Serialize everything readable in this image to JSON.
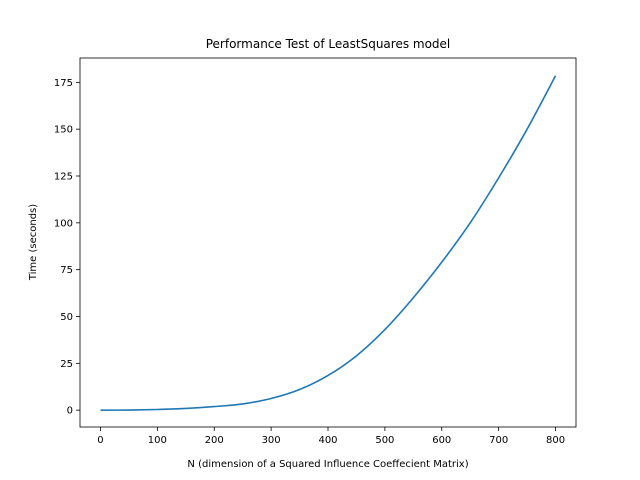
{
  "chart_data": {
    "type": "line",
    "title": "Performance Test of LeastSquares model",
    "xlabel": "N (dimension of a Squared Influence Coeffecient Matrix)",
    "ylabel": "Time (seconds)",
    "xlim": [
      -36,
      836
    ],
    "ylim": [
      -9,
      188
    ],
    "xticks": [
      0,
      100,
      200,
      300,
      400,
      500,
      600,
      700,
      800
    ],
    "xtick_labels": [
      "0",
      "100",
      "200",
      "300",
      "400",
      "500",
      "600",
      "700",
      "800"
    ],
    "yticks": [
      0,
      25,
      50,
      75,
      100,
      125,
      150,
      175
    ],
    "ytick_labels": [
      "0",
      "25",
      "50",
      "75",
      "100",
      "125",
      "150",
      "175"
    ],
    "grid": false,
    "series": [
      {
        "color": "#1f77b4",
        "x": [
          0,
          50,
          100,
          150,
          200,
          250,
          300,
          350,
          400,
          450,
          500,
          550,
          600,
          650,
          700,
          750,
          800
        ],
        "y": [
          0,
          0.05,
          0.35,
          0.9,
          1.9,
          3.3,
          6.2,
          11,
          18.5,
          29,
          43,
          60,
          79,
          100,
          124,
          150,
          178.5
        ]
      }
    ]
  }
}
